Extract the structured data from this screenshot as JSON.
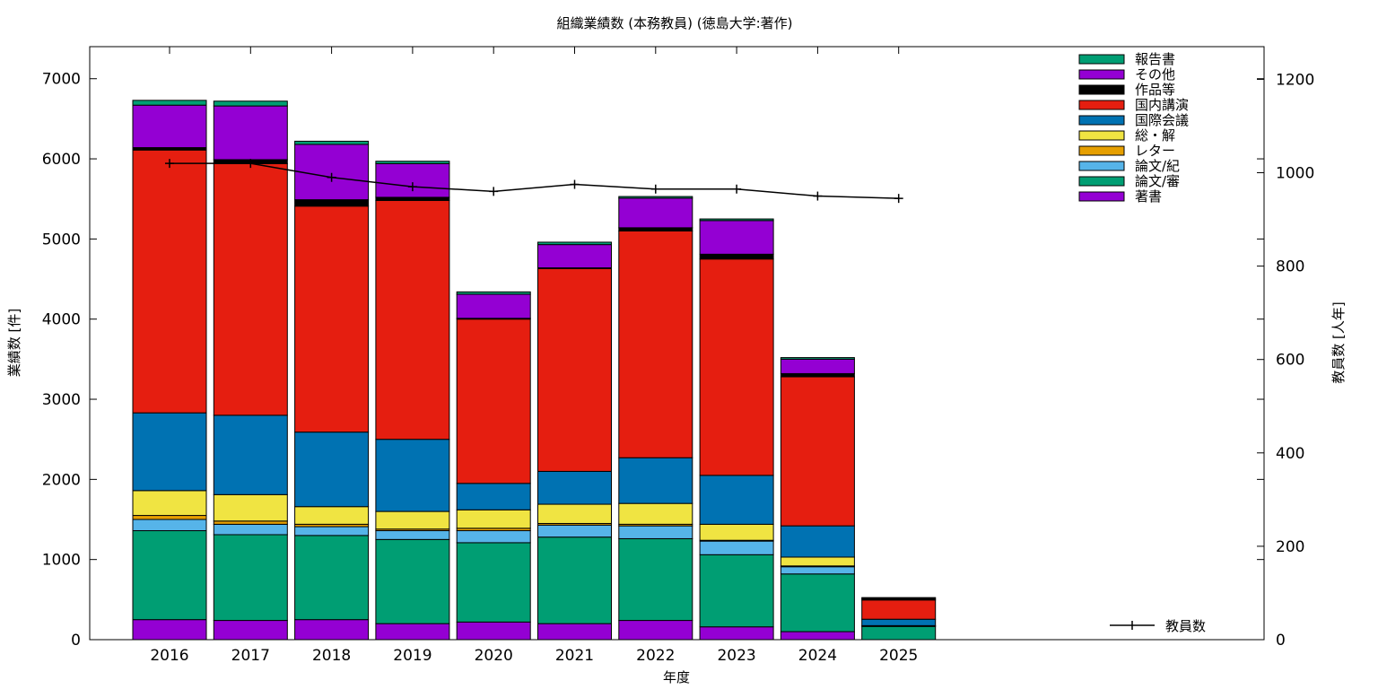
{
  "chart_data": {
    "type": "bar",
    "stacked": true,
    "title": "組織業績数 (本務教員) (徳島大学:著作)",
    "xlabel": "年度",
    "ylabel": "業績数 [件]",
    "y2label": "教員数 [人年]",
    "ylim": [
      0,
      7400
    ],
    "y2lim": [
      0,
      1270
    ],
    "yticks": [
      0,
      1000,
      2000,
      3000,
      4000,
      5000,
      6000,
      7000
    ],
    "y2ticks": [
      0,
      200,
      400,
      600,
      800,
      1000,
      1200
    ],
    "categories": [
      "2016",
      "2017",
      "2018",
      "2019",
      "2020",
      "2021",
      "2022",
      "2023",
      "2024",
      "2025"
    ],
    "legend_position": "top-right",
    "series": [
      {
        "name": "著書",
        "color": "#9400d3",
        "values": [
          250,
          240,
          250,
          200,
          220,
          200,
          240,
          160,
          100,
          0
        ]
      },
      {
        "name": "論文/審",
        "color": "#009e73",
        "values": [
          1110,
          1070,
          1050,
          1050,
          990,
          1080,
          1020,
          900,
          720,
          165
        ]
      },
      {
        "name": "論文/紀",
        "color": "#56b4e9",
        "values": [
          140,
          130,
          110,
          110,
          150,
          150,
          160,
          170,
          90,
          10
        ]
      },
      {
        "name": "レター",
        "color": "#e69f00",
        "values": [
          50,
          40,
          30,
          20,
          30,
          20,
          20,
          10,
          10,
          0
        ]
      },
      {
        "name": "総・解",
        "color": "#f0e442",
        "values": [
          310,
          330,
          220,
          220,
          230,
          240,
          260,
          200,
          110,
          0
        ]
      },
      {
        "name": "国際会議",
        "color": "#0072b2",
        "values": [
          970,
          990,
          930,
          900,
          330,
          410,
          570,
          610,
          390,
          80
        ]
      },
      {
        "name": "国内講演",
        "color": "#e51e10",
        "values": [
          3280,
          3140,
          2820,
          2980,
          2050,
          2530,
          2830,
          2700,
          1860,
          240
        ]
      },
      {
        "name": "作品等",
        "color": "#000000",
        "values": [
          30,
          50,
          80,
          40,
          10,
          10,
          40,
          60,
          40,
          20
        ]
      },
      {
        "name": "その他",
        "color": "#9400d3",
        "values": [
          530,
          670,
          690,
          420,
          300,
          290,
          370,
          420,
          180,
          0
        ]
      },
      {
        "name": "報告書",
        "color": "#009e73",
        "values": [
          60,
          60,
          40,
          30,
          30,
          30,
          20,
          20,
          20,
          10
        ]
      }
    ],
    "line_series": {
      "name": "教員数",
      "axis": "right",
      "color": "#000000",
      "values": [
        1020,
        1020,
        990,
        970,
        960,
        975,
        965,
        965,
        950,
        945
      ]
    }
  }
}
